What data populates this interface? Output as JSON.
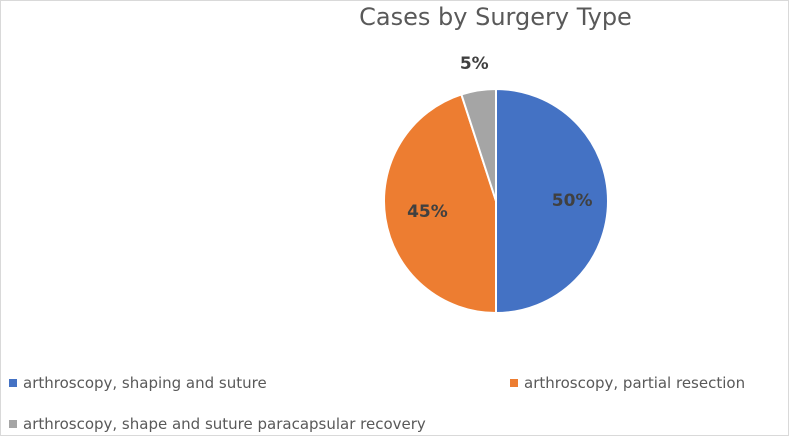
{
  "chart_data": {
    "type": "pie",
    "title": "Cases by Surgery Type",
    "categories": [
      "arthroscopy, shaping and suture",
      "arthroscopy, partial resection",
      "arthroscopy, shape and suture paracapsular recovery"
    ],
    "values": [
      50,
      45,
      5
    ],
    "data_labels": [
      "50%",
      "45%",
      "5%"
    ],
    "colors": [
      "#4472C4",
      "#ED7D31",
      "#A5A5A5"
    ],
    "legend_position": "bottom",
    "start_angle_deg": 0,
    "direction": "clockwise"
  }
}
